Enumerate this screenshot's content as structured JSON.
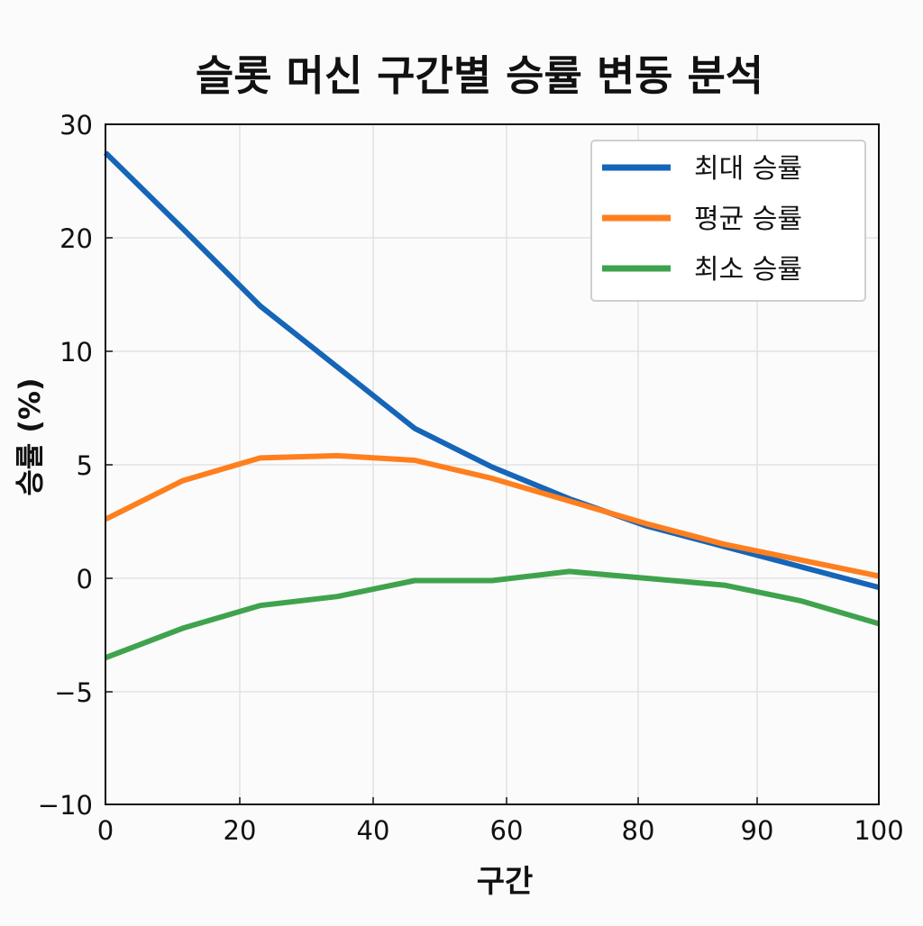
{
  "chart_data": {
    "type": "line",
    "title": "슬롯 머신 구간별 승률 변동 분석",
    "xlabel": "구간",
    "ylabel": "승률 (%)",
    "x": [
      0,
      10,
      20,
      30,
      40,
      50,
      60,
      70,
      80,
      90,
      100
    ],
    "xticks": [
      "0",
      "20",
      "40",
      "60",
      "80",
      "90",
      "100"
    ],
    "yticks": [
      "30",
      "20",
      "10",
      "5",
      "0",
      "−5",
      "−10"
    ],
    "grid": true,
    "legend_position": "top-right",
    "series": [
      {
        "name": "최대 승률",
        "color": "#1565b8",
        "values": [
          27.5,
          20.8,
          14.0,
          9.3,
          6.6,
          4.9,
          3.5,
          2.3,
          1.4,
          0.5,
          -0.4
        ]
      },
      {
        "name": "평균 승률",
        "color": "#ff7f1e",
        "values": [
          2.6,
          4.3,
          5.3,
          5.4,
          5.2,
          4.4,
          3.4,
          2.4,
          1.5,
          0.8,
          0.1
        ]
      },
      {
        "name": "최소 승률",
        "color": "#3fa34d",
        "values": [
          -3.5,
          -2.2,
          -1.2,
          -0.8,
          -0.1,
          -0.1,
          0.3,
          0.0,
          -0.3,
          -1.0,
          -2.0
        ]
      }
    ]
  }
}
